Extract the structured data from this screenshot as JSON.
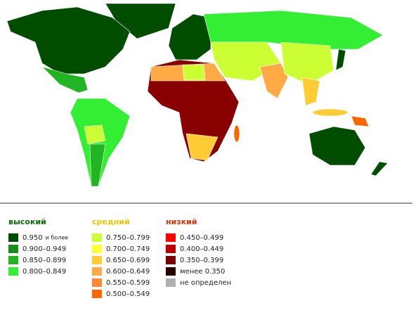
{
  "legend": {
    "groups": [
      {
        "title": "высокий",
        "color": "#0a6a0a",
        "items": [
          {
            "label": "0.950",
            "note": "и более",
            "color": "#004d00"
          },
          {
            "label": "0.900–0.949",
            "color": "#1a8c1a"
          },
          {
            "label": "0.850–0.899",
            "color": "#22b422"
          },
          {
            "label": "0.800–0.849",
            "color": "#33ee33"
          }
        ]
      },
      {
        "title": "средний",
        "color": "#e6c800",
        "items": [
          {
            "label": "0.750–0.799",
            "color": "#ccff33"
          },
          {
            "label": "0.700–0.749",
            "color": "#ffff33"
          },
          {
            "label": "0.650–0.699",
            "color": "#ffcc33"
          },
          {
            "label": "0.600–0.649",
            "color": "#ffaa44"
          },
          {
            "label": "0.550–0.599",
            "color": "#ff8833"
          },
          {
            "label": "0.500–0.549",
            "color": "#ff6600"
          }
        ]
      },
      {
        "title": "низкий",
        "color": "#e03000",
        "items": [
          {
            "label": "0.450–0.499",
            "color": "#ff0000"
          },
          {
            "label": "0.400–0.449",
            "color": "#bb0000"
          },
          {
            "label": "0.350–0.399",
            "color": "#7a0000"
          },
          {
            "label": "менее 0.350",
            "color": "#2a0000"
          },
          {
            "label": "не определен",
            "color": "#b0b0b0"
          }
        ]
      }
    ]
  }
}
